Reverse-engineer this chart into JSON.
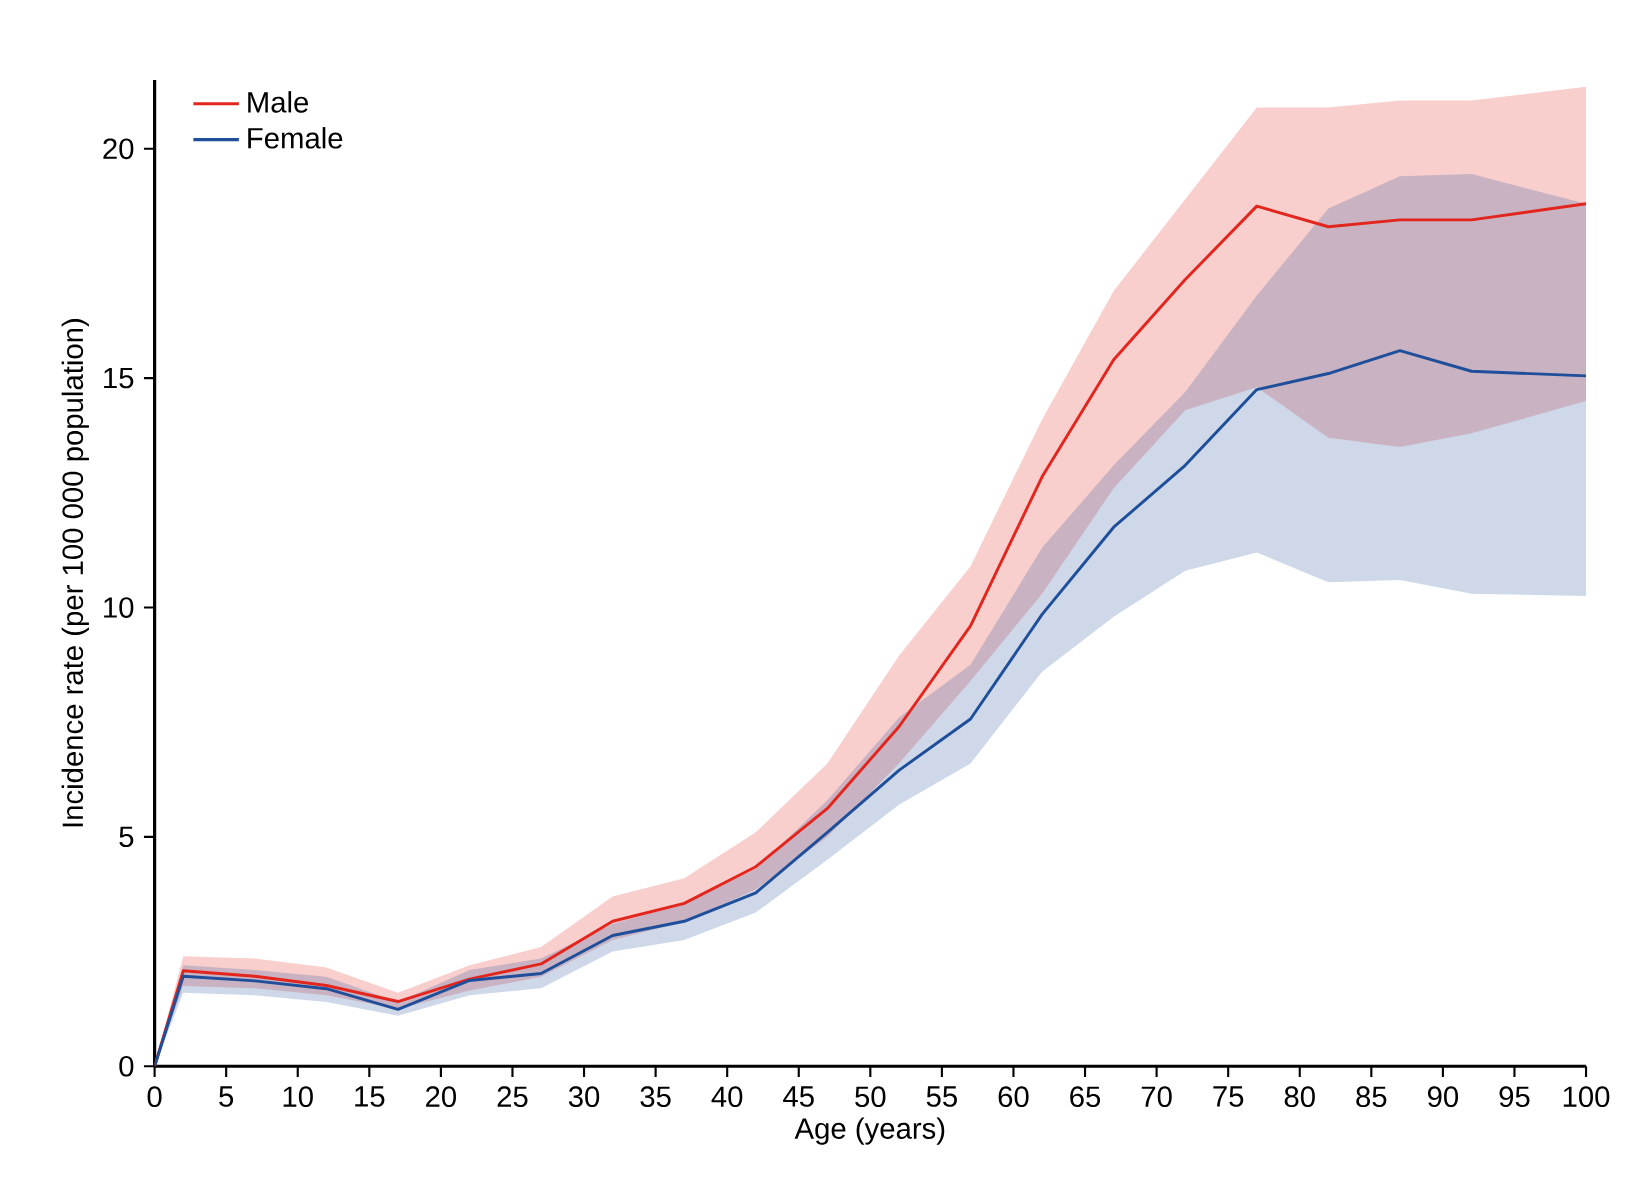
{
  "chart_data": {
    "type": "line",
    "xlabel": "Age (years)",
    "ylabel": "Incidence rate (per 100 000 population)",
    "x": [
      0,
      2,
      7,
      12,
      17,
      22,
      27,
      32,
      37,
      42,
      47,
      52,
      57,
      62,
      67,
      72,
      77,
      82,
      87,
      92,
      100
    ],
    "xlim": [
      0,
      100
    ],
    "xticks": [
      0,
      5,
      10,
      15,
      20,
      25,
      30,
      35,
      40,
      45,
      50,
      55,
      60,
      65,
      70,
      75,
      80,
      85,
      90,
      95,
      100
    ],
    "ylim": [
      0,
      21.5
    ],
    "yticks": [
      0,
      5,
      10,
      15,
      20
    ],
    "grid": false,
    "legend": "top left",
    "marker": "none",
    "line_style": "solid",
    "series": [
      {
        "name": "Male",
        "color": "#e3261d",
        "values": [
          0,
          2.08,
          1.96,
          1.76,
          1.41,
          1.9,
          2.23,
          3.16,
          3.55,
          4.35,
          5.62,
          7.4,
          9.6,
          12.85,
          15.4,
          17.15,
          18.75,
          18.3,
          18.45,
          18.45,
          18.8
        ],
        "lower": [
          0,
          1.75,
          1.7,
          1.55,
          1.25,
          1.65,
          1.95,
          2.75,
          3.15,
          3.85,
          5.0,
          6.6,
          8.4,
          10.3,
          12.6,
          14.3,
          14.8,
          13.7,
          13.5,
          13.8,
          14.5
        ],
        "upper": [
          0,
          2.4,
          2.35,
          2.15,
          1.6,
          2.2,
          2.6,
          3.7,
          4.1,
          5.1,
          6.6,
          8.95,
          10.9,
          14.1,
          16.9,
          18.9,
          20.9,
          20.9,
          21.05,
          21.05,
          21.35
        ]
      },
      {
        "name": "Female",
        "color": "#1f4f9a",
        "values": [
          0,
          1.96,
          1.86,
          1.69,
          1.24,
          1.87,
          2.02,
          2.85,
          3.16,
          3.78,
          5.1,
          6.45,
          7.57,
          9.85,
          11.75,
          13.1,
          14.75,
          15.1,
          15.6,
          15.15,
          15.05
        ],
        "lower": [
          0,
          1.6,
          1.55,
          1.4,
          1.1,
          1.55,
          1.7,
          2.5,
          2.75,
          3.35,
          4.5,
          5.7,
          6.6,
          8.6,
          9.8,
          10.8,
          11.2,
          10.55,
          10.6,
          10.3,
          10.25
        ],
        "upper": [
          0,
          2.2,
          2.1,
          1.95,
          1.4,
          2.1,
          2.35,
          3.1,
          3.55,
          4.3,
          5.8,
          7.6,
          8.75,
          11.3,
          13.1,
          14.7,
          16.8,
          18.7,
          19.4,
          19.45,
          18.8
        ]
      }
    ]
  }
}
